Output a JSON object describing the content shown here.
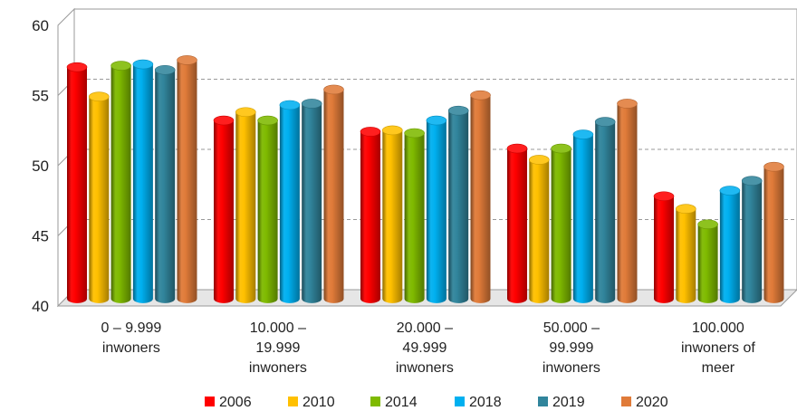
{
  "chart_data": {
    "type": "bar",
    "title": "",
    "xlabel": "",
    "ylabel": "",
    "ylim": [
      40,
      60
    ],
    "yticks": [
      40,
      45,
      50,
      55,
      60
    ],
    "grid": "dashed horizontal",
    "legend_position": "bottom",
    "categories": [
      [
        "0 – 9.999",
        "inwoners"
      ],
      [
        "10.000 –",
        "19.999",
        "inwoners"
      ],
      [
        "20.000 –",
        "49.999",
        "inwoners"
      ],
      [
        "50.000 –",
        "99.999",
        "inwoners"
      ],
      [
        "100.000",
        "inwoners of",
        "meer"
      ]
    ],
    "series": [
      {
        "name": "2006",
        "color": "#ff0000",
        "values": [
          56.5,
          52.7,
          51.9,
          50.7,
          47.3
        ]
      },
      {
        "name": "2010",
        "color": "#ffc000",
        "values": [
          54.4,
          53.3,
          52.0,
          49.9,
          46.4
        ]
      },
      {
        "name": "2014",
        "color": "#7fba00",
        "values": [
          56.6,
          52.7,
          51.8,
          50.7,
          45.3
        ]
      },
      {
        "name": "2018",
        "color": "#00b0f0",
        "values": [
          56.7,
          53.8,
          52.7,
          51.7,
          47.7
        ]
      },
      {
        "name": "2019",
        "color": "#31859c",
        "values": [
          56.3,
          53.9,
          53.4,
          52.6,
          48.4
        ]
      },
      {
        "name": "2020",
        "color": "#e07b39",
        "values": [
          57.0,
          54.9,
          54.5,
          53.9,
          49.4
        ]
      }
    ]
  }
}
